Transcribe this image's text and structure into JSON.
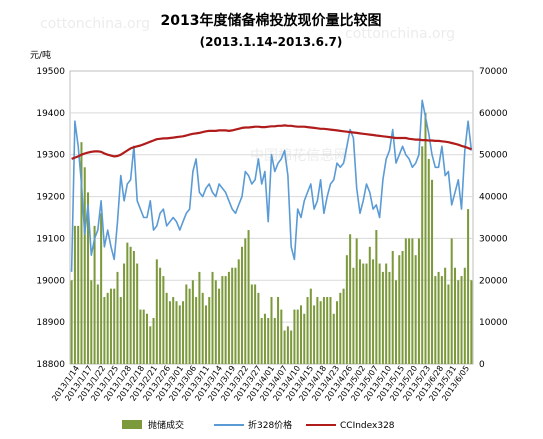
{
  "chart_data": {
    "type": "bar+line",
    "title": "2013年度储备棉投放现价量比较图",
    "subtitle": "(2013.1.14-2013.6.7)",
    "y_left_unit": "元/吨",
    "y_left_range": [
      18800,
      19500
    ],
    "y_left_ticks": [
      "19500",
      "19400",
      "19300",
      "19200",
      "19100",
      "19000",
      "18900",
      "18800"
    ],
    "y_right_range": [
      0,
      70000
    ],
    "y_right_ticks": [
      "70000",
      "60000",
      "50000",
      "40000",
      "30000",
      "20000",
      "10000",
      "0"
    ],
    "x_tick_labels": [
      "2013/1/14",
      "2013/1/17",
      "2013/1/22",
      "2013/1/25",
      "2013/1/28",
      "2013/2/18",
      "2013/2/21",
      "2013/2/26",
      "2013/3/01",
      "2013/3/06",
      "2013/3/11",
      "2013/3/14",
      "2013/3/19",
      "2013/3/22",
      "2013/3/27",
      "2013/4/01",
      "2013/4/07",
      "2013/4/10",
      "2013/4/15",
      "2013/4/18",
      "2013/4/23",
      "2013/4/26",
      "2013/5/02",
      "2013/5/07",
      "2013/5/10",
      "2013/5/15",
      "2013/5/20",
      "2013/5/23",
      "2013/6/28",
      "2013/5/31",
      "2013/6/05"
    ],
    "grid": true,
    "legend_position": "bottom",
    "colors": {
      "bars": "#7c9a3c",
      "price": "#5b9bd5",
      "ccindex": "#b01c1c",
      "grid": "#d9d9d9"
    },
    "series": [
      {
        "name": "抛储成交",
        "axis": "right",
        "type": "bar",
        "values": [
          20000,
          33000,
          33000,
          53000,
          47000,
          41000,
          20000,
          33000,
          19000,
          36000,
          16000,
          17000,
          18000,
          18000,
          22000,
          16000,
          24000,
          29000,
          28000,
          27000,
          24000,
          13000,
          13000,
          12000,
          9000,
          11000,
          25000,
          23000,
          21000,
          17000,
          15000,
          16000,
          15000,
          14000,
          15000,
          19000,
          18000,
          20000,
          16000,
          22000,
          17000,
          14000,
          16000,
          22000,
          20000,
          18000,
          21000,
          21000,
          22000,
          23000,
          23000,
          25000,
          28000,
          30000,
          32000,
          19000,
          19000,
          17000,
          11000,
          12000,
          11000,
          16000,
          11000,
          16000,
          13000,
          8000,
          9000,
          8000,
          13000,
          13000,
          14000,
          12000,
          16000,
          18000,
          14000,
          16000,
          15000,
          16000,
          16000,
          16000,
          12000,
          15000,
          17000,
          18000,
          26000,
          31000,
          23000,
          30000,
          25000,
          24000,
          24000,
          28000,
          25000,
          32000,
          24000,
          22000,
          24000,
          22000,
          27000,
          20000,
          26000,
          27000,
          30000,
          30000,
          30000,
          26000,
          30000,
          52000,
          60000,
          49000,
          44000,
          21000,
          22000,
          21000,
          23000,
          19000,
          30000,
          23000,
          20000,
          21000,
          23000,
          37000,
          20000
        ]
      },
      {
        "name": "折328价格",
        "axis": "left",
        "type": "line",
        "values": [
          19020,
          19380,
          19320,
          19230,
          19110,
          19180,
          19060,
          19100,
          19120,
          19190,
          19080,
          19120,
          19080,
          19050,
          19140,
          19250,
          19190,
          19230,
          19240,
          19320,
          19190,
          19170,
          19150,
          19150,
          19190,
          19120,
          19130,
          19160,
          19170,
          19130,
          19140,
          19150,
          19140,
          19120,
          19140,
          19160,
          19170,
          19260,
          19290,
          19210,
          19200,
          19220,
          19230,
          19210,
          19200,
          19230,
          19220,
          19210,
          19190,
          19170,
          19160,
          19180,
          19200,
          19260,
          19250,
          19230,
          19240,
          19290,
          19230,
          19260,
          19140,
          19300,
          19260,
          19280,
          19290,
          19310,
          19250,
          19080,
          19050,
          19170,
          19150,
          19190,
          19210,
          19230,
          19170,
          19190,
          19240,
          19160,
          19200,
          19230,
          19240,
          19280,
          19270,
          19280,
          19320,
          19360,
          19340,
          19220,
          19160,
          19190,
          19230,
          19210,
          19170,
          19180,
          19150,
          19240,
          19290,
          19310,
          19360,
          19280,
          19300,
          19320,
          19300,
          19290,
          19270,
          19280,
          19300,
          19430,
          19390,
          19350,
          19300,
          19270,
          19270,
          19320,
          19250,
          19260,
          19180,
          19210,
          19240,
          19170,
          19310,
          19380,
          19310
        ]
      },
      {
        "name": "CCIndex328",
        "axis": "left",
        "type": "line",
        "values": [
          19290,
          19293,
          19296,
          19300,
          19303,
          19305,
          19307,
          19308,
          19308,
          19307,
          19303,
          19300,
          19298,
          19296,
          19297,
          19300,
          19305,
          19310,
          19315,
          19318,
          19320,
          19322,
          19325,
          19328,
          19331,
          19334,
          19337,
          19338,
          19339,
          19339,
          19340,
          19341,
          19342,
          19343,
          19344,
          19346,
          19348,
          19350,
          19351,
          19352,
          19354,
          19356,
          19357,
          19357,
          19357,
          19358,
          19358,
          19358,
          19357,
          19358,
          19360,
          19362,
          19364,
          19365,
          19365,
          19366,
          19367,
          19367,
          19366,
          19366,
          19367,
          19368,
          19368,
          19369,
          19369,
          19370,
          19369,
          19369,
          19368,
          19367,
          19367,
          19367,
          19366,
          19365,
          19364,
          19363,
          19362,
          19362,
          19361,
          19360,
          19359,
          19358,
          19357,
          19356,
          19355,
          19354,
          19353,
          19352,
          19351,
          19350,
          19349,
          19348,
          19347,
          19346,
          19345,
          19344,
          19343,
          19342,
          19341,
          19340,
          19340,
          19340,
          19340,
          19338,
          19337,
          19336,
          19336,
          19335,
          19335,
          19334,
          19334,
          19333,
          19333,
          19332,
          19331,
          19330,
          19328,
          19326,
          19324,
          19321,
          19319,
          19316,
          19313
        ]
      }
    ]
  },
  "watermarks": [
    "cottonchina.org",
    "cottonchina.org",
    "中国棉花信息网"
  ]
}
